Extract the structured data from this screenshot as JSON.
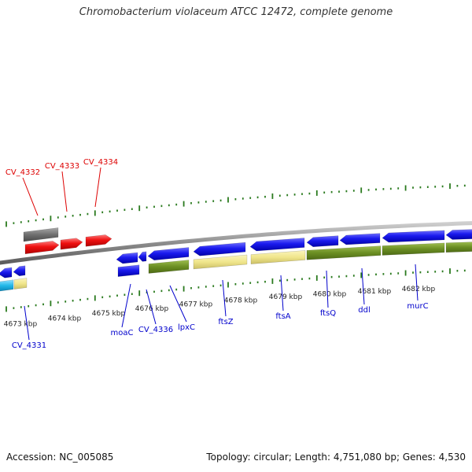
{
  "title": "Chromobacterium violaceum ATCC 12472, complete genome",
  "footer": {
    "accession": "Accession: NC_005085",
    "summary": "Topology: circular; Length: 4,751,080 bp; Genes: 4,530"
  },
  "colors": {
    "backbone": "#8c8c8c",
    "tick": "#2a7a1e",
    "red_gene": "#ee1111",
    "blue_gene": "#1111dd",
    "gray_feature": "#6e6e6e",
    "olive_feature": "#6b8e23",
    "khaki_feature": "#f0e68c",
    "cyan_feature": "#22b8e8",
    "red_label": "#dd0000",
    "blue_label": "#0000cc",
    "tick_text": "#222222"
  },
  "scale_labels": [
    "4673 kbp",
    "4674 kbp",
    "4675 kbp",
    "4676 kbp",
    "4677 kbp",
    "4678 kbp",
    "4679 kbp",
    "4680 kbp",
    "4681 kbp",
    "4682 kbp"
  ],
  "genes_top": [
    "CV_4332",
    "CV_4333",
    "CV_4334"
  ],
  "genes_bottom": [
    "CV_4331",
    "moaC",
    "CV_4336",
    "lpxC",
    "ftsZ",
    "ftsA",
    "ftsQ",
    "ddl",
    "murC"
  ]
}
